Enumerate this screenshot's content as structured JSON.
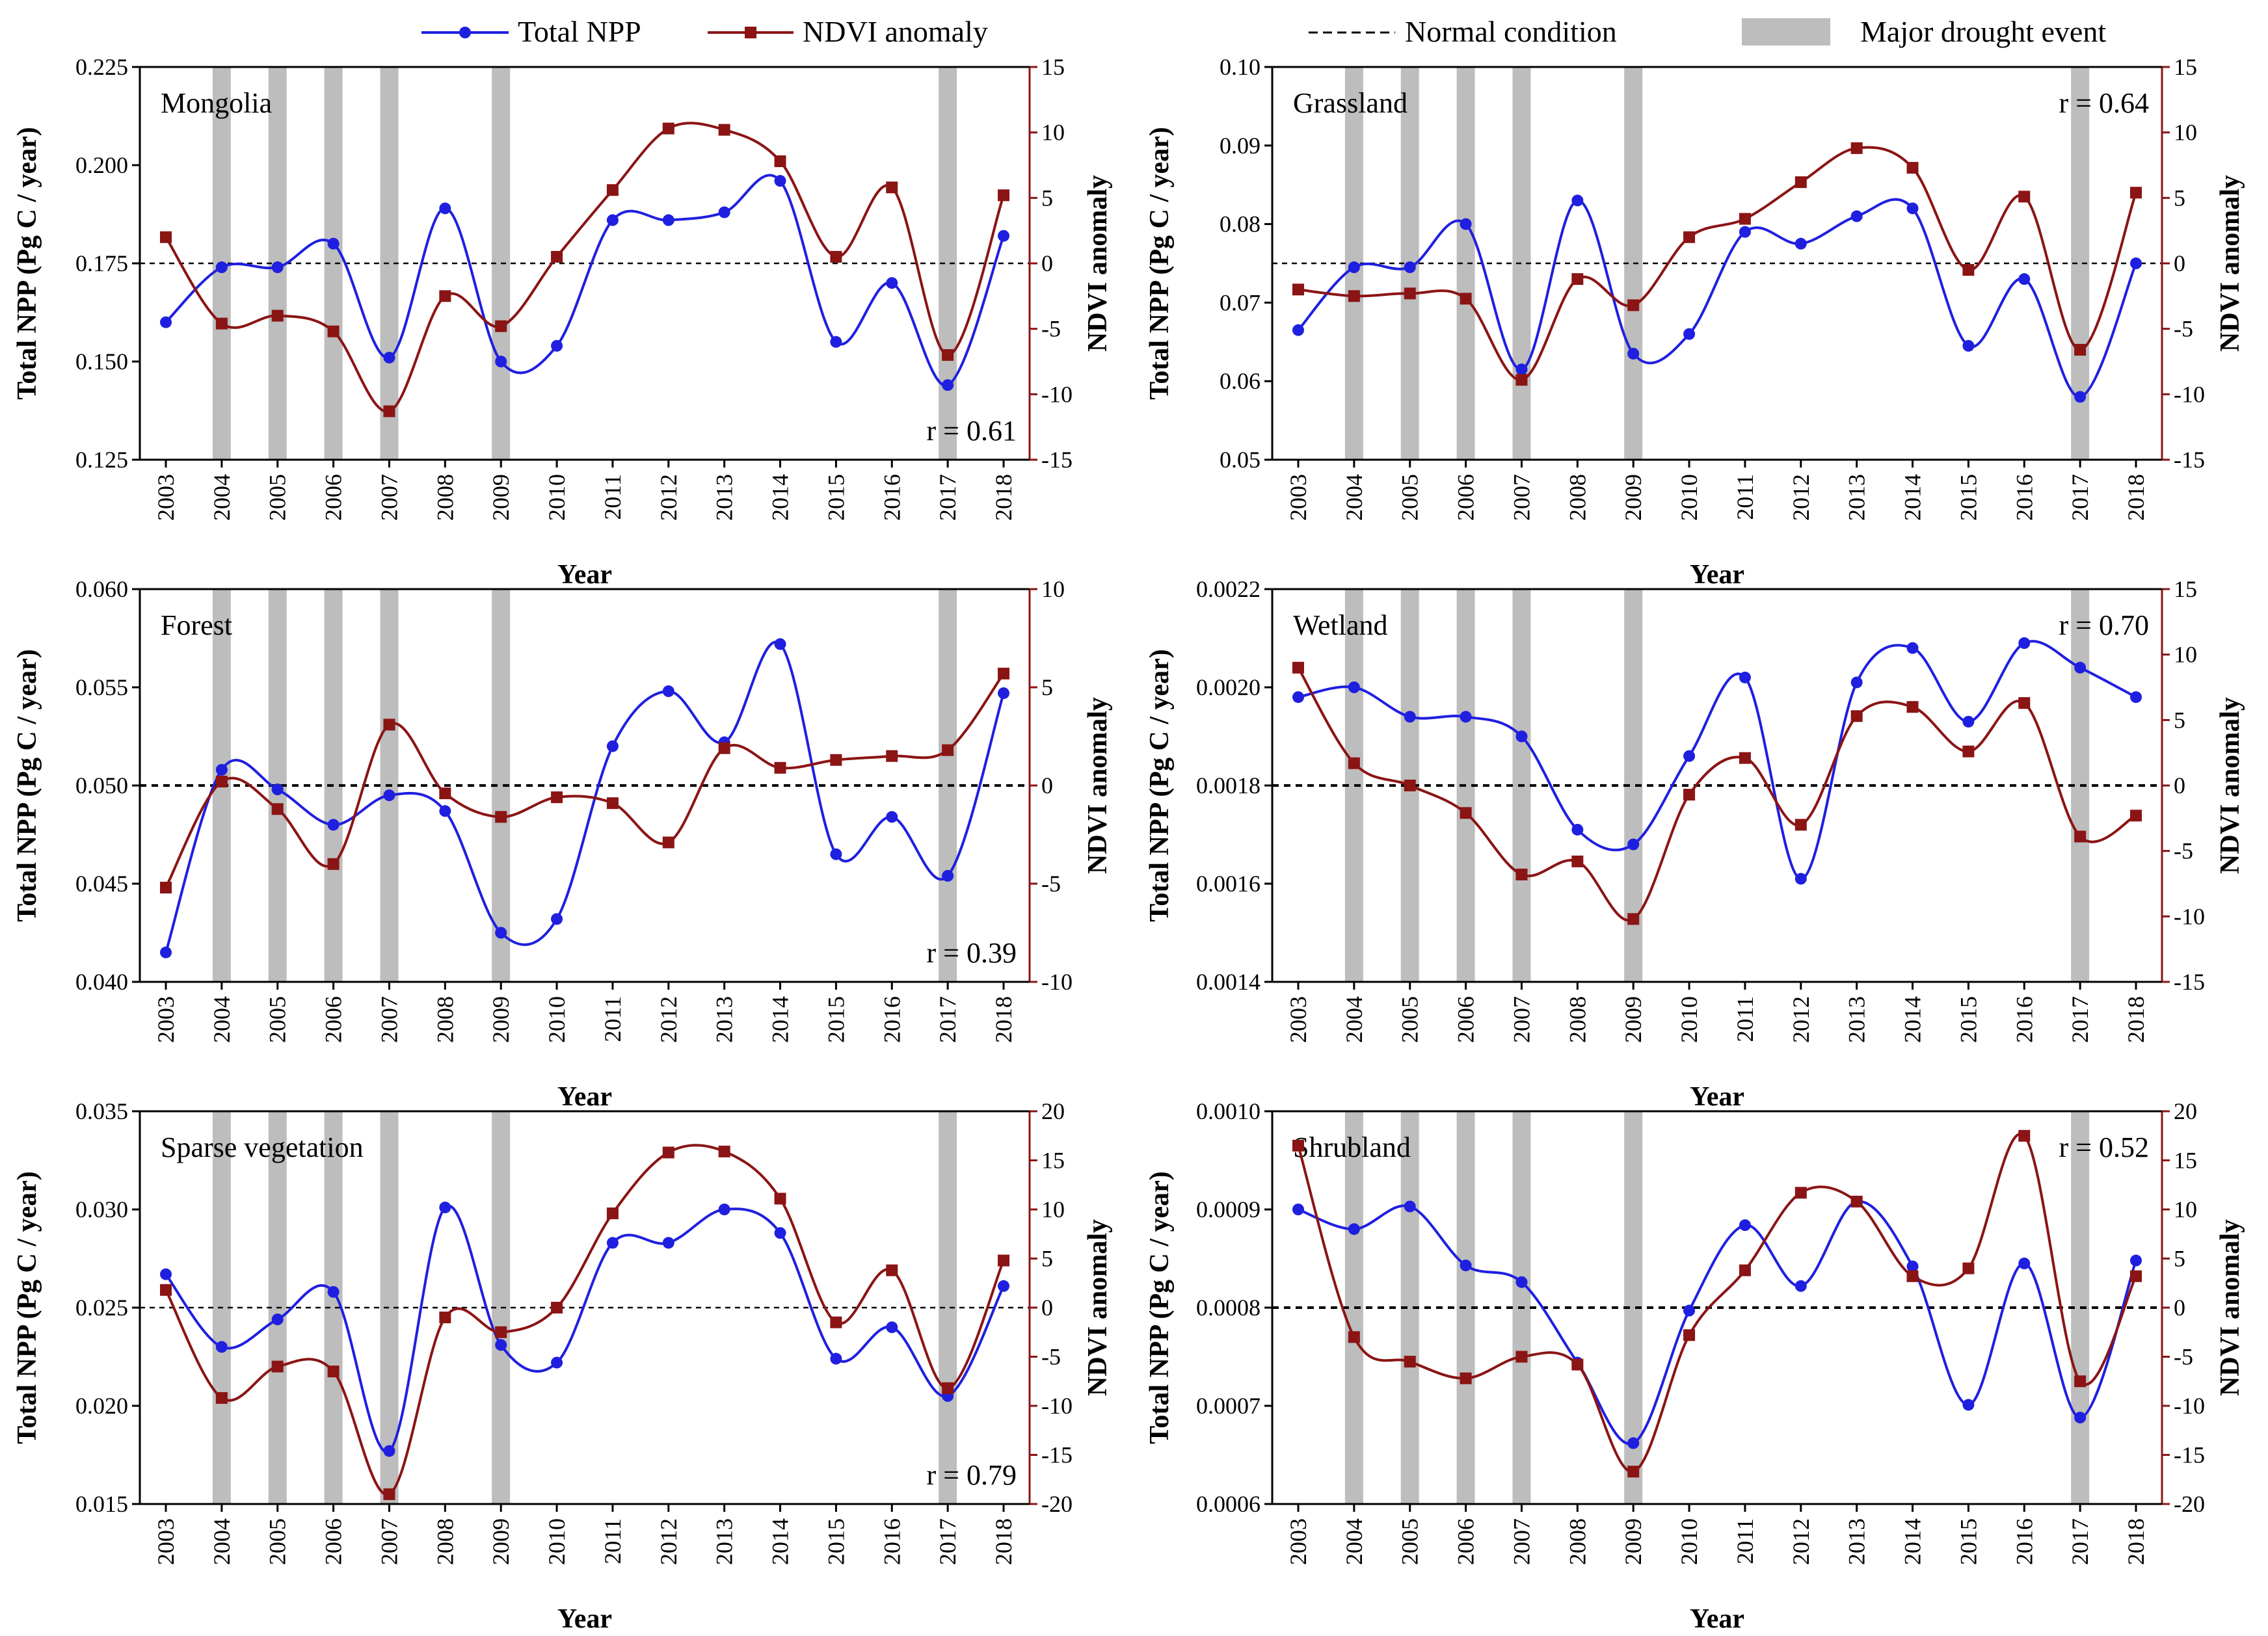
{
  "legend": {
    "npp_label": "Total NPP",
    "ndvi_label": "NDVI anomaly",
    "normal_label": "Normal condition",
    "drought_label": "Major drought event"
  },
  "colors": {
    "npp": "#1f1fe0",
    "ndvi": "#8b1414",
    "drought_band": "#bdbdbd",
    "normal_line": "#000000"
  },
  "chart_data": [
    {
      "type": "line",
      "title": "Mongolia",
      "r_value": "r = 0.61",
      "r_position": "bottom-right",
      "xlabel": "Year",
      "ylabel_left": "Total NPP (Pg C / year)",
      "ylabel_right": "NDVI anomaly",
      "categories": [
        "2003",
        "2004",
        "2005",
        "2006",
        "2007",
        "2008",
        "2009",
        "2010",
        "2011",
        "2012",
        "2013",
        "2014",
        "2015",
        "2016",
        "2017",
        "2018"
      ],
      "ylim_left": [
        0.125,
        0.225
      ],
      "yticks_left": [
        "0.125",
        "0.150",
        "0.175",
        "0.200",
        "0.225"
      ],
      "ylim_right": [
        -15,
        15
      ],
      "yticks_right": [
        "-15",
        "-10",
        "-5",
        "0",
        "5",
        "10",
        "15"
      ],
      "normal_value": 0.175,
      "normal_style": "fine",
      "drought_years": [
        "2004",
        "2005",
        "2006",
        "2007",
        "2009",
        "2017"
      ],
      "series": [
        {
          "name": "Total NPP",
          "axis": "left",
          "values": [
            0.16,
            0.174,
            0.174,
            0.18,
            0.151,
            0.189,
            0.15,
            0.154,
            0.186,
            0.186,
            0.188,
            0.196,
            0.155,
            0.17,
            0.144,
            0.182
          ]
        },
        {
          "name": "NDVI anomaly",
          "axis": "right",
          "values": [
            2.0,
            -4.6,
            -4.0,
            -5.2,
            -11.3,
            -2.5,
            -4.8,
            0.5,
            5.6,
            10.3,
            10.2,
            7.8,
            0.5,
            5.8,
            -7.0,
            5.2
          ]
        }
      ]
    },
    {
      "type": "line",
      "title": "Grassland",
      "r_value": "r = 0.64",
      "r_position": "top-right",
      "xlabel": "Year",
      "ylabel_left": "Total NPP (Pg C / year)",
      "ylabel_right": "NDVI anomaly",
      "categories": [
        "2003",
        "2004",
        "2005",
        "2006",
        "2007",
        "2008",
        "2009",
        "2010",
        "2011",
        "2012",
        "2013",
        "2014",
        "2015",
        "2016",
        "2017",
        "2018"
      ],
      "ylim_left": [
        0.05,
        0.1
      ],
      "yticks_left": [
        "0.05",
        "0.06",
        "0.07",
        "0.08",
        "0.09",
        "0.10"
      ],
      "ylim_right": [
        -15,
        15
      ],
      "yticks_right": [
        "-15",
        "-10",
        "-5",
        "0",
        "5",
        "10",
        "15"
      ],
      "normal_value": 0.075,
      "normal_style": "fine",
      "drought_years": [
        "2004",
        "2005",
        "2006",
        "2007",
        "2009",
        "2017"
      ],
      "series": [
        {
          "name": "Total NPP",
          "axis": "left",
          "values": [
            0.0665,
            0.0745,
            0.0745,
            0.08,
            0.0615,
            0.083,
            0.0635,
            0.066,
            0.079,
            0.0775,
            0.081,
            0.082,
            0.0645,
            0.073,
            0.058,
            0.075
          ]
        },
        {
          "name": "NDVI anomaly",
          "axis": "right",
          "values": [
            -2.0,
            -2.5,
            -2.3,
            -2.7,
            -8.9,
            -1.2,
            -3.2,
            2.0,
            3.4,
            6.2,
            8.8,
            7.3,
            -0.5,
            5.1,
            -6.6,
            5.4
          ]
        }
      ]
    },
    {
      "type": "line",
      "title": "Forest",
      "r_value": "r = 0.39",
      "r_position": "bottom-right",
      "xlabel": "Year",
      "ylabel_left": "Total NPP (Pg C / year)",
      "ylabel_right": "NDVI anomaly",
      "categories": [
        "2003",
        "2004",
        "2005",
        "2006",
        "2007",
        "2008",
        "2009",
        "2010",
        "2011",
        "2012",
        "2013",
        "2014",
        "2015",
        "2016",
        "2017",
        "2018"
      ],
      "ylim_left": [
        0.04,
        0.06
      ],
      "yticks_left": [
        "0.040",
        "0.045",
        "0.050",
        "0.055",
        "0.060"
      ],
      "ylim_right": [
        -10,
        10
      ],
      "yticks_right": [
        "-10",
        "-5",
        "0",
        "5",
        "10"
      ],
      "normal_value": 0.05,
      "normal_style": "bold",
      "drought_years": [
        "2004",
        "2005",
        "2006",
        "2007",
        "2009",
        "2017"
      ],
      "series": [
        {
          "name": "Total NPP",
          "axis": "left",
          "values": [
            0.0415,
            0.0508,
            0.0498,
            0.048,
            0.0495,
            0.0487,
            0.0425,
            0.0432,
            0.052,
            0.0548,
            0.0522,
            0.0572,
            0.0465,
            0.0484,
            0.0454,
            0.0547
          ]
        },
        {
          "name": "NDVI anomaly",
          "axis": "right",
          "values": [
            -5.2,
            0.2,
            -1.2,
            -4.0,
            3.1,
            -0.4,
            -1.6,
            -0.6,
            -0.9,
            -2.9,
            1.9,
            0.9,
            1.3,
            1.5,
            1.8,
            5.7
          ]
        }
      ]
    },
    {
      "type": "line",
      "title": "Wetland",
      "r_value": "r = 0.70",
      "r_position": "top-right",
      "xlabel": "Year",
      "ylabel_left": "Total NPP (Pg C / year)",
      "ylabel_right": "NDVI anomaly",
      "categories": [
        "2003",
        "2004",
        "2005",
        "2006",
        "2007",
        "2008",
        "2009",
        "2010",
        "2011",
        "2012",
        "2013",
        "2014",
        "2015",
        "2016",
        "2017",
        "2018"
      ],
      "ylim_left": [
        0.0014,
        0.0022
      ],
      "yticks_left": [
        "0.0014",
        "0.0016",
        "0.0018",
        "0.0020",
        "0.0022"
      ],
      "ylim_right": [
        -15,
        15
      ],
      "yticks_right": [
        "-15",
        "-10",
        "-5",
        "0",
        "5",
        "10",
        "15"
      ],
      "normal_value": 0.0018,
      "normal_style": "bold",
      "drought_years": [
        "2004",
        "2005",
        "2006",
        "2007",
        "2009",
        "2017"
      ],
      "series": [
        {
          "name": "Total NPP",
          "axis": "left",
          "values": [
            0.00198,
            0.002,
            0.00194,
            0.00194,
            0.0019,
            0.00171,
            0.00168,
            0.00186,
            0.00202,
            0.00161,
            0.00201,
            0.00208,
            0.00193,
            0.00209,
            0.00204,
            0.00198
          ]
        },
        {
          "name": "NDVI anomaly",
          "axis": "right",
          "values": [
            9.0,
            1.7,
            0.0,
            -2.1,
            -6.8,
            -5.8,
            -10.2,
            -0.7,
            2.1,
            -3.0,
            5.3,
            6.0,
            2.6,
            6.3,
            -3.9,
            -2.3
          ]
        }
      ]
    },
    {
      "type": "line",
      "title": "Sparse vegetation",
      "r_value": "r = 0.79",
      "r_position": "bottom-right",
      "xlabel": "Year",
      "ylabel_left": "Total NPP (Pg C / year)",
      "ylabel_right": "NDVI anomaly",
      "categories": [
        "2003",
        "2004",
        "2005",
        "2006",
        "2007",
        "2008",
        "2009",
        "2010",
        "2011",
        "2012",
        "2013",
        "2014",
        "2015",
        "2016",
        "2017",
        "2018"
      ],
      "ylim_left": [
        0.015,
        0.035
      ],
      "yticks_left": [
        "0.015",
        "0.020",
        "0.025",
        "0.030",
        "0.035"
      ],
      "ylim_right": [
        -20,
        20
      ],
      "yticks_right": [
        "-20",
        "-15",
        "-10",
        "-5",
        "0",
        "5",
        "10",
        "15",
        "20"
      ],
      "normal_value": 0.025,
      "normal_style": "fine",
      "drought_years": [
        "2004",
        "2005",
        "2006",
        "2007",
        "2009",
        "2017"
      ],
      "series": [
        {
          "name": "Total NPP",
          "axis": "left",
          "values": [
            0.0267,
            0.023,
            0.0244,
            0.0258,
            0.0177,
            0.0301,
            0.0231,
            0.0222,
            0.0283,
            0.0283,
            0.03,
            0.0288,
            0.0224,
            0.024,
            0.0205,
            0.0261
          ]
        },
        {
          "name": "NDVI anomaly",
          "axis": "right",
          "values": [
            1.8,
            -9.2,
            -6.0,
            -6.5,
            -19.0,
            -1.0,
            -2.5,
            0.0,
            9.6,
            15.8,
            15.9,
            11.1,
            -1.5,
            3.8,
            -8.2,
            4.8
          ]
        }
      ]
    },
    {
      "type": "line",
      "title": "Shrubland",
      "r_value": "r = 0.52",
      "r_position": "top-right",
      "xlabel": "Year",
      "ylabel_left": "Total NPP (Pg C / year)",
      "ylabel_right": "NDVI anomaly",
      "categories": [
        "2003",
        "2004",
        "2005",
        "2006",
        "2007",
        "2008",
        "2009",
        "2010",
        "2011",
        "2012",
        "2013",
        "2014",
        "2015",
        "2016",
        "2017",
        "2018"
      ],
      "ylim_left": [
        0.0006,
        0.001
      ],
      "yticks_left": [
        "0.0006",
        "0.0007",
        "0.0008",
        "0.0009",
        "0.0010"
      ],
      "ylim_right": [
        -20,
        20
      ],
      "yticks_right": [
        "-20",
        "-15",
        "-10",
        "-5",
        "0",
        "5",
        "10",
        "15",
        "20"
      ],
      "normal_value": 0.0008,
      "normal_style": "bold",
      "drought_years": [
        "2004",
        "2005",
        "2006",
        "2007",
        "2009",
        "2017"
      ],
      "series": [
        {
          "name": "Total NPP",
          "axis": "left",
          "values": [
            0.0009,
            0.00088,
            0.000903,
            0.000843,
            0.000826,
            0.000744,
            0.000662,
            0.000797,
            0.000884,
            0.000822,
            0.000908,
            0.000842,
            0.000701,
            0.000845,
            0.000688,
            0.000848
          ]
        },
        {
          "name": "NDVI anomaly",
          "axis": "right",
          "values": [
            16.5,
            -3.0,
            -5.5,
            -7.2,
            -5.0,
            -5.8,
            -16.7,
            -2.8,
            3.8,
            11.7,
            10.8,
            3.2,
            4.0,
            17.5,
            -7.5,
            3.2
          ]
        }
      ]
    }
  ]
}
